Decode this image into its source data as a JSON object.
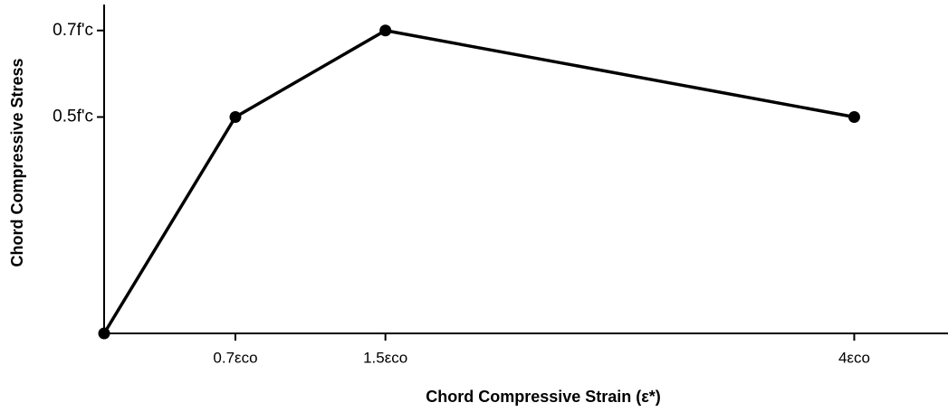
{
  "chart_data": {
    "type": "line",
    "x_label": "Chord Compressive Strain (ε*)",
    "y_label": "Chord Compressive Stress",
    "x": [
      0,
      0.7,
      1.5,
      4
    ],
    "series": [
      {
        "color": "#000000",
        "values": [
          0,
          0.5,
          0.7,
          0.5
        ]
      }
    ],
    "xlim": [
      0,
      4.5
    ],
    "ylim": [
      0,
      0.76
    ],
    "xticks": [
      {
        "value": 0.7,
        "label": "0.7εco"
      },
      {
        "value": 1.5,
        "label": "1.5εco"
      },
      {
        "value": 4,
        "label": "4εco"
      }
    ],
    "yticks": [
      {
        "value": 0.5,
        "label": "0.5f'c"
      },
      {
        "value": 0.7,
        "label": "0.7f'c"
      }
    ],
    "grid": false
  }
}
